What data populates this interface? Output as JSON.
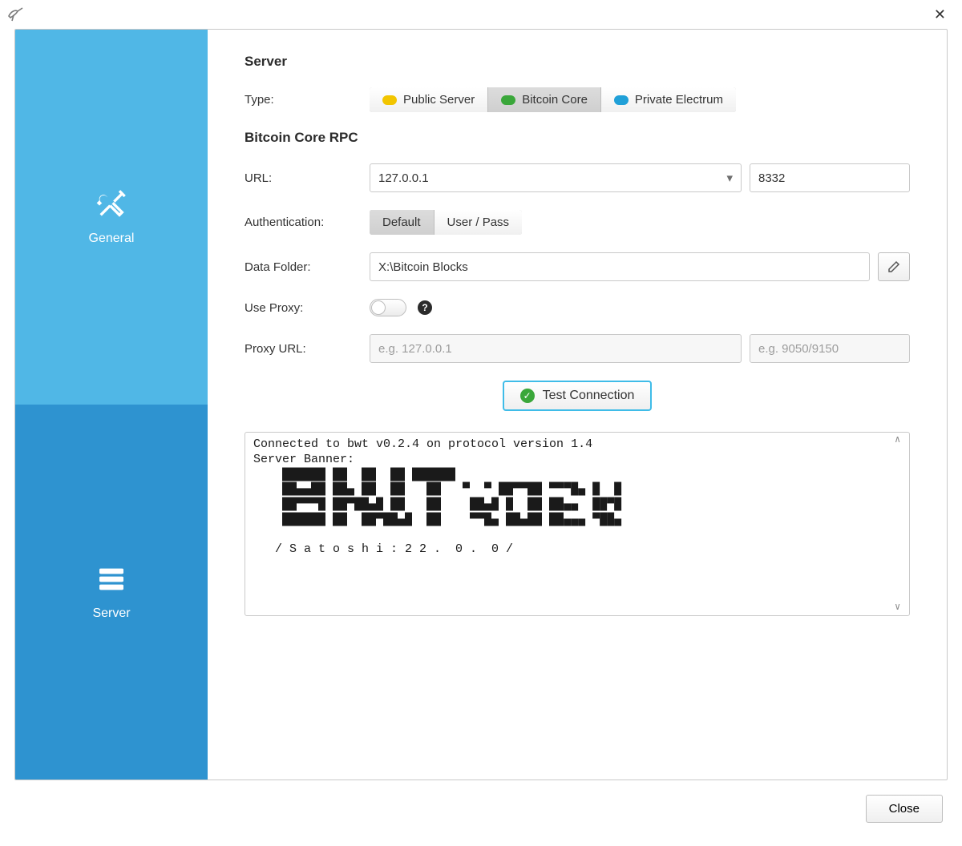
{
  "colors": {
    "sidebar_general_bg": "#50b7e6",
    "sidebar_server_bg": "#2e93d0",
    "accent": "#3fbce8",
    "pill_public": "#f2c500",
    "pill_core": "#3aa73a",
    "pill_electrum": "#20a0d8",
    "border": "#c9c9c9"
  },
  "sidebar": {
    "items": [
      {
        "key": "general",
        "label": "General"
      },
      {
        "key": "server",
        "label": "Server"
      }
    ],
    "active": "server"
  },
  "server_section": {
    "heading": "Server",
    "type_label": "Type:",
    "type_options": [
      {
        "key": "public",
        "label": "Public Server",
        "pill_color": "#f2c500"
      },
      {
        "key": "core",
        "label": "Bitcoin Core",
        "pill_color": "#3aa73a"
      },
      {
        "key": "electrum",
        "label": "Private Electrum",
        "pill_color": "#20a0d8"
      }
    ],
    "type_selected": "core"
  },
  "rpc_section": {
    "heading": "Bitcoin Core RPC",
    "url_label": "URL:",
    "url_host": "127.0.0.1",
    "url_port": "8332",
    "auth_label": "Authentication:",
    "auth_options": [
      "Default",
      "User / Pass"
    ],
    "auth_selected": "Default",
    "folder_label": "Data Folder:",
    "folder_value": "X:\\Bitcoin Blocks",
    "proxy_toggle_label": "Use Proxy:",
    "proxy_enabled": false,
    "proxy_url_label": "Proxy URL:",
    "proxy_host_placeholder": "e.g. 127.0.0.1",
    "proxy_port_placeholder": "e.g. 9050/9150",
    "test_button": "Test Connection"
  },
  "console_text": "Connected to bwt v0.2.4 on protocol version 1.4\nServer Banner:\n    ██████ ██  ██  ██ ██████\n    ██▄▄██ ██▄ ██  ██   ██   ▀  ▀ ██▀▀██ ▀▀▀█▄ █  █\n    ██▀▀▀█ ██▀██▄█ ██   ██    ██▄█ █  ██ ██▄▄  ██▀█\n    ██████ ██  ██▀██▄█  ██    ▀▀█▄ ██▄██ ██▄▄▄ ▀██▄\n\n   / S a t o s h i : 2 2 .  0 .  0 /",
  "close_label": "Close"
}
